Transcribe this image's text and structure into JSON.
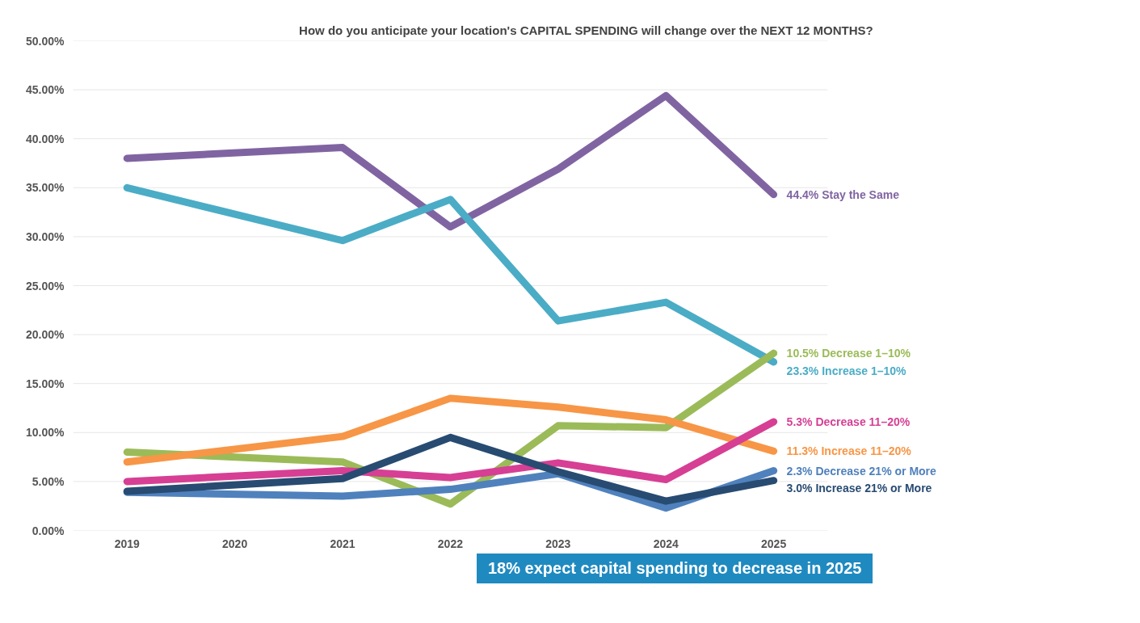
{
  "chart_data": {
    "type": "line",
    "title": "How do you anticipate your location's CAPITAL SPENDING will change over the NEXT 12 MONTHS?",
    "x": [
      2019,
      2021,
      2022,
      2023,
      2024,
      2025
    ],
    "xlim": [
      2018.5,
      2025.5
    ],
    "xticks": [
      2019,
      2020,
      2021,
      2022,
      2023,
      2024,
      2025
    ],
    "ylim": [
      0,
      50
    ],
    "yticks": [
      {
        "value": 0,
        "label": "0.00%"
      },
      {
        "value": 5,
        "label": "5.00%"
      },
      {
        "value": 10,
        "label": "10.00%"
      },
      {
        "value": 15,
        "label": "15.00%"
      },
      {
        "value": 20,
        "label": "20.00%"
      },
      {
        "value": 25,
        "label": "25.00%"
      },
      {
        "value": 30,
        "label": "30.00%"
      },
      {
        "value": 35,
        "label": "35.00%"
      },
      {
        "value": 40,
        "label": "40.00%"
      },
      {
        "value": 45,
        "label": "45.00%"
      },
      {
        "value": 50,
        "label": "50.00%"
      }
    ],
    "grid": "y",
    "series": [
      {
        "name": "44.4% Stay the Same",
        "color": "#8064a2",
        "values": [
          38.0,
          39.1,
          31.0,
          36.9,
          44.4,
          34.3
        ]
      },
      {
        "name": "23.3% Increase 1–10%",
        "color": "#4bacc6",
        "values": [
          35.0,
          29.6,
          33.8,
          21.4,
          23.3,
          17.2
        ]
      },
      {
        "name": "10.5% Decrease 1–10%",
        "color": "#9bbb59",
        "values": [
          8.0,
          7.0,
          2.7,
          10.7,
          10.5,
          18.1
        ]
      },
      {
        "name": "11.3% Increase 11–20%",
        "color": "#f79646",
        "values": [
          7.0,
          9.6,
          13.5,
          12.6,
          11.3,
          8.1
        ]
      },
      {
        "name": "5.3% Decrease 11–20%",
        "color": "#d63f94",
        "values": [
          5.0,
          6.1,
          5.4,
          6.9,
          5.2,
          11.1
        ]
      },
      {
        "name": "2.3% Decrease 21% or More",
        "color": "#4f81bd",
        "values": [
          3.9,
          3.5,
          4.2,
          5.8,
          2.3,
          6.1
        ]
      },
      {
        "name": "3.0% Increase 21% or More",
        "color": "#284b72",
        "values": [
          4.0,
          5.3,
          9.5,
          6.0,
          3.0,
          5.1
        ]
      }
    ],
    "annotations": [
      "18% expect capital spending to decrease in 2025"
    ]
  }
}
